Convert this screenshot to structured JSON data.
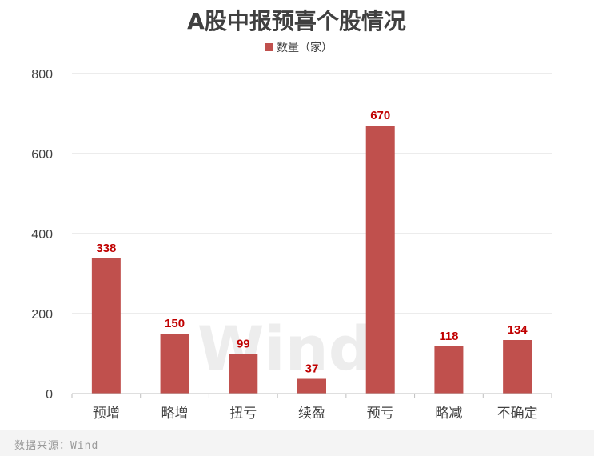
{
  "chart_data": {
    "type": "bar",
    "title": "A股中报预喜个股情况",
    "legend": {
      "label": "数量（家）",
      "position": "top",
      "color": "#c0504d"
    },
    "categories": [
      "预增",
      "略增",
      "扭亏",
      "续盈",
      "预亏",
      "略减",
      "不确定"
    ],
    "series": [
      {
        "name": "数量（家）",
        "values": [
          338,
          150,
          99,
          37,
          670,
          118,
          134
        ]
      }
    ],
    "ylim": [
      0,
      800
    ],
    "yticks": [
      "0",
      "200",
      "400",
      "600",
      "800"
    ],
    "xlabel": "",
    "ylabel": "",
    "grid": "horizontal",
    "bar_color": "#c0504d",
    "data_label_color": "#c00000",
    "watermark": "Wind"
  },
  "footer": {
    "source": "数据来源：Wind"
  }
}
